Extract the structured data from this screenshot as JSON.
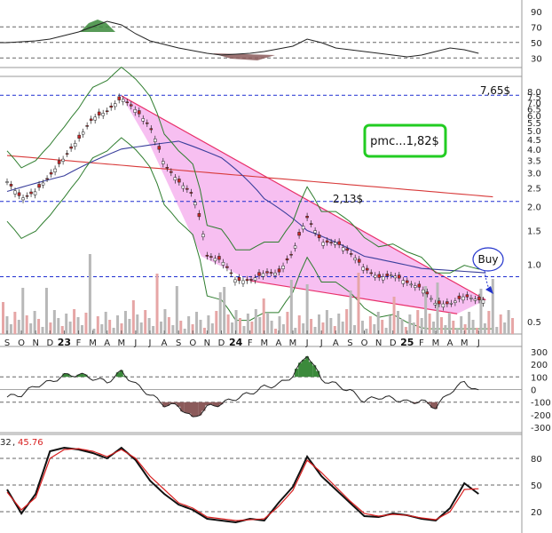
{
  "chart_data": [
    {
      "type": "line",
      "panel": "top-oscillator",
      "y_ticks": [
        "90",
        "70",
        "50",
        "30"
      ],
      "y_levels": [
        90,
        70,
        50,
        30
      ],
      "ylim": [
        20,
        100
      ],
      "grid": "horizontal dashed at 30, 50, 70"
    },
    {
      "type": "candlestick",
      "panel": "price",
      "y_scale": "log",
      "ylim": [
        0.45,
        9.0
      ],
      "y_ticks": [
        "8.0",
        "7.5",
        "7.0",
        "6.5",
        "6.0",
        "5.5",
        "5.0",
        "4.5",
        "4.0",
        "3.5",
        "3.0",
        "2.5",
        "2.0",
        "1.5",
        "1.0",
        "0.5"
      ],
      "y_tick_values": [
        8.0,
        7.5,
        7.0,
        6.5,
        6.0,
        5.5,
        5.0,
        4.5,
        4.0,
        3.5,
        3.0,
        2.5,
        2.0,
        1.5,
        1.0,
        0.5
      ],
      "x_month_labels": [
        "S",
        "O",
        "N",
        "D",
        "23",
        "F",
        "M",
        "A",
        "M",
        "J",
        "J",
        "A",
        "S",
        "O",
        "N",
        "D",
        "24",
        "F",
        "M",
        "A",
        "M",
        "J",
        "J",
        "A",
        "S",
        "O",
        "N",
        "D",
        "25",
        "F",
        "M",
        "A",
        "M",
        "J"
      ],
      "year_labels": [
        "23",
        "24",
        "25"
      ],
      "price_series": [
        {
          "m": 0,
          "v": 2.7
        },
        {
          "m": 1,
          "v": 2.2
        },
        {
          "m": 2,
          "v": 2.4
        },
        {
          "m": 3,
          "v": 2.9
        },
        {
          "m": 4,
          "v": 3.6
        },
        {
          "m": 5,
          "v": 4.5
        },
        {
          "m": 6,
          "v": 5.8
        },
        {
          "m": 7,
          "v": 6.3
        },
        {
          "m": 8,
          "v": 7.4
        },
        {
          "m": 9,
          "v": 6.4
        },
        {
          "m": 10,
          "v": 5.2
        },
        {
          "m": 11,
          "v": 3.3
        },
        {
          "m": 12,
          "v": 2.7
        },
        {
          "m": 13,
          "v": 2.3
        },
        {
          "m": 14,
          "v": 1.1
        },
        {
          "m": 15,
          "v": 1.05
        },
        {
          "m": 16,
          "v": 0.82
        },
        {
          "m": 17,
          "v": 0.82
        },
        {
          "m": 18,
          "v": 0.9
        },
        {
          "m": 19,
          "v": 0.9
        },
        {
          "m": 20,
          "v": 1.15
        },
        {
          "m": 21,
          "v": 1.75
        },
        {
          "m": 22,
          "v": 1.3
        },
        {
          "m": 23,
          "v": 1.3
        },
        {
          "m": 24,
          "v": 1.15
        },
        {
          "m": 25,
          "v": 0.95
        },
        {
          "m": 26,
          "v": 0.85
        },
        {
          "m": 27,
          "v": 0.88
        },
        {
          "m": 28,
          "v": 0.8
        },
        {
          "m": 29,
          "v": 0.75
        },
        {
          "m": 30,
          "v": 0.62
        },
        {
          "m": 31,
          "v": 0.62
        },
        {
          "m": 32,
          "v": 0.68
        },
        {
          "m": 33,
          "v": 0.65
        }
      ],
      "levels": [
        {
          "label": "7,65$",
          "value": 7.65,
          "color": "#1f2fd0"
        },
        {
          "label": "2,13$",
          "value": 2.13,
          "color": "#1f2fd0"
        },
        {
          "label": "",
          "value": 0.86,
          "color": "#1f2fd0"
        }
      ],
      "wedge_upper": [
        {
          "m": 8.0,
          "v": 7.6
        },
        {
          "m": 33.5,
          "v": 0.65
        }
      ],
      "wedge_lower": [
        {
          "m": 17.0,
          "v": 0.82
        },
        {
          "m": 31.5,
          "v": 0.55
        }
      ],
      "annotations": [
        {
          "text": "pmc...1,82$",
          "box_color": "#22cc22"
        },
        {
          "text": "Buy"
        }
      ],
      "colors": {
        "wedge_fill": "#f6b8ef",
        "wedge_line": "#e8306a",
        "bands": "#2e7d2e",
        "ma_long": "#d83a3a",
        "ma_mid": "#3a3f9c",
        "level_line": "#1f2fd0",
        "candle": "#c62828"
      }
    },
    {
      "type": "line",
      "panel": "cci",
      "y_ticks": [
        "300",
        "200",
        "100",
        "0",
        "-100",
        "-200",
        "-300"
      ],
      "y_levels": [
        300,
        200,
        100,
        0,
        -100,
        -200,
        -300
      ],
      "ylim": [
        -320,
        320
      ],
      "series_points": [
        {
          "m": 0,
          "v": -60
        },
        {
          "m": 1,
          "v": -40
        },
        {
          "m": 2,
          "v": 30
        },
        {
          "m": 3,
          "v": 60
        },
        {
          "m": 4,
          "v": 110
        },
        {
          "m": 5,
          "v": 120
        },
        {
          "m": 6,
          "v": 90
        },
        {
          "m": 7,
          "v": 60
        },
        {
          "m": 8,
          "v": 140
        },
        {
          "m": 9,
          "v": 40
        },
        {
          "m": 10,
          "v": -40
        },
        {
          "m": 11,
          "v": -120
        },
        {
          "m": 12,
          "v": -130
        },
        {
          "m": 13,
          "v": -230
        },
        {
          "m": 14,
          "v": -140
        },
        {
          "m": 15,
          "v": -110
        },
        {
          "m": 16,
          "v": -70
        },
        {
          "m": 17,
          "v": -30
        },
        {
          "m": 18,
          "v": 20
        },
        {
          "m": 19,
          "v": 40
        },
        {
          "m": 20,
          "v": 110
        },
        {
          "m": 21,
          "v": 280
        },
        {
          "m": 22,
          "v": 80
        },
        {
          "m": 23,
          "v": 40
        },
        {
          "m": 24,
          "v": -10
        },
        {
          "m": 25,
          "v": -90
        },
        {
          "m": 26,
          "v": -60
        },
        {
          "m": 27,
          "v": -70
        },
        {
          "m": 28,
          "v": -100
        },
        {
          "m": 29,
          "v": -90
        },
        {
          "m": 30,
          "v": -140
        },
        {
          "m": 31,
          "v": -20
        },
        {
          "m": 32,
          "v": 60
        },
        {
          "m": 33,
          "v": -20
        }
      ]
    },
    {
      "type": "line",
      "panel": "stochastic",
      "legend_values": [
        "32",
        "45.76"
      ],
      "y_ticks": [
        "80",
        "50",
        "20"
      ],
      "y_levels": [
        80,
        50,
        20
      ],
      "ylim": [
        0,
        100
      ],
      "series": [
        {
          "color": "#111111",
          "values": [
            45,
            18,
            40,
            88,
            92,
            90,
            86,
            80,
            92,
            78,
            55,
            40,
            28,
            22,
            12,
            10,
            8,
            12,
            10,
            30,
            48,
            82,
            60,
            45,
            30,
            15,
            14,
            18,
            16,
            12,
            10,
            24,
            52,
            40
          ]
        },
        {
          "color": "#d81f1f",
          "values": [
            42,
            22,
            36,
            80,
            90,
            91,
            88,
            82,
            90,
            80,
            60,
            45,
            30,
            24,
            14,
            12,
            10,
            11,
            12,
            26,
            44,
            78,
            64,
            48,
            32,
            18,
            15,
            17,
            16,
            13,
            11,
            20,
            45,
            45.76
          ]
        }
      ]
    }
  ]
}
